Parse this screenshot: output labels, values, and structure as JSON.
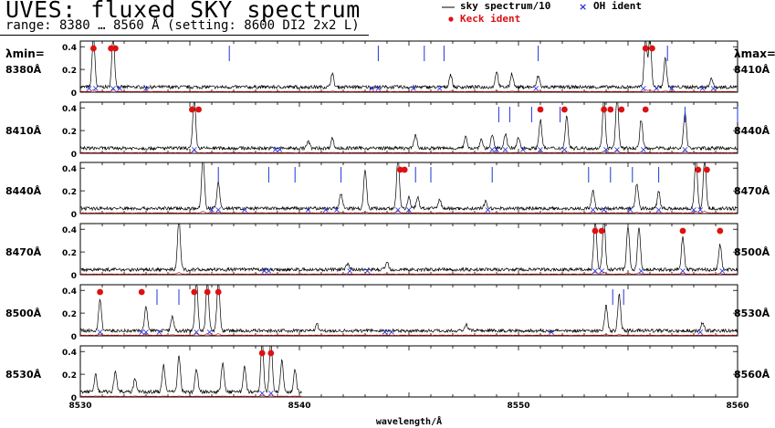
{
  "header": {
    "title": "UVES: fluxed SKY spectrum",
    "subtitle": "range: 8380 … 8560 Å (setting: 8600 DI2 2x2 L)",
    "legend": [
      {
        "label": "sky spectrum/10",
        "marker": "line",
        "color": "#000000"
      },
      {
        "label": "OH ident",
        "marker": "x",
        "color": "#2233dd"
      },
      {
        "label": "Keck ident",
        "marker": "dot",
        "color": "#dd1111"
      }
    ]
  },
  "side_labels": {
    "min": "λmin=",
    "max": "λmax="
  },
  "colors": {
    "spectrum": "#000000",
    "keck": "#dd1111",
    "oh": "#2233dd"
  },
  "chart_data": {
    "type": "line",
    "xlabel": "wavelength/Å",
    "ylim": [
      0,
      0.45
    ],
    "yticks": [
      "0",
      "0.2",
      "0.4"
    ],
    "panels": [
      {
        "min": 8380,
        "max": 8410,
        "min_label": "8380Å",
        "max_label": "8410Å",
        "peaks": [
          [
            8380.6,
            0.45,
            0.8
          ],
          [
            8381.5,
            0.45,
            0.8
          ],
          [
            8391.5,
            0.12,
            0.2
          ],
          [
            8396.9,
            0.11,
            0.2
          ],
          [
            8399.0,
            0.14,
            0.2
          ],
          [
            8399.7,
            0.12,
            0.2
          ],
          [
            8405.8,
            0.45,
            0.8
          ],
          [
            8406.0,
            0.45,
            0.8
          ],
          [
            8406.7,
            0.25,
            0.3
          ],
          [
            8400.9,
            0.1,
            0.1
          ],
          [
            8408.8,
            0.08,
            0.1
          ]
        ],
        "keck": [
          8380.6,
          8381.4,
          8381.6,
          8405.8,
          8406.1
        ],
        "oh_lines": [
          8386.8,
          8393.6,
          8395.7,
          8396.6,
          8400.9,
          8406.8
        ],
        "oh_marks": [
          8380.4,
          8380.7,
          8381.5,
          8381.8,
          8383.0,
          8393.3,
          8393.6,
          8395.2,
          8396.4,
          8400.8,
          8405.7,
          8406.3,
          8407.0,
          8408.4,
          8408.9
        ]
      },
      {
        "min": 8410,
        "max": 8440,
        "min_label": "8410Å",
        "max_label": "8440Å",
        "peaks": [
          [
            8415.2,
            0.45,
            0.8
          ],
          [
            8420.4,
            0.06,
            0.1
          ],
          [
            8421.5,
            0.09,
            0.1
          ],
          [
            8425.3,
            0.12,
            0.2
          ],
          [
            8427.6,
            0.1,
            0.1
          ],
          [
            8428.3,
            0.08,
            0.1
          ],
          [
            8428.8,
            0.11,
            0.2
          ],
          [
            8429.4,
            0.13,
            0.2
          ],
          [
            8430.0,
            0.09,
            0.1
          ],
          [
            8431.0,
            0.25,
            0.3
          ],
          [
            8432.2,
            0.28,
            0.3
          ],
          [
            8433.9,
            0.45,
            0.7
          ],
          [
            8434.5,
            0.45,
            0.7
          ],
          [
            8435.6,
            0.25,
            0.3
          ],
          [
            8437.6,
            0.32,
            0.5
          ]
        ],
        "keck": [
          8415.1,
          8415.4,
          8431.0,
          8432.1,
          8433.9,
          8434.2,
          8434.7,
          8435.8
        ],
        "oh_lines": [
          8429.1,
          8429.6,
          8430.6,
          8431.9,
          8437.6,
          8440.0
        ],
        "oh_marks": [
          8415.2,
          8418.9,
          8419.1,
          8428.8,
          8429.0,
          8429.4,
          8430.2,
          8431.0,
          8432.1,
          8434.0,
          8434.5,
          8435.7,
          8437.6
        ]
      },
      {
        "min": 8440,
        "max": 8470,
        "min_label": "8440Å",
        "max_label": "8470Å",
        "peaks": [
          [
            8445.6,
            0.45,
            0.8
          ],
          [
            8446.3,
            0.23,
            0.3
          ],
          [
            8451.9,
            0.13,
            0.2
          ],
          [
            8453.0,
            0.35,
            0.5
          ],
          [
            8454.5,
            0.45,
            0.8
          ],
          [
            8455.0,
            0.1,
            0.1
          ],
          [
            8455.4,
            0.1,
            0.1
          ],
          [
            8456.4,
            0.08,
            0.1
          ],
          [
            8458.5,
            0.06,
            0.1
          ],
          [
            8463.4,
            0.15,
            0.2
          ],
          [
            8465.4,
            0.22,
            0.3
          ],
          [
            8466.4,
            0.15,
            0.2
          ],
          [
            8468.1,
            0.45,
            0.8
          ],
          [
            8468.5,
            0.45,
            0.8
          ]
        ],
        "keck": [
          8454.6,
          8454.8,
          8468.2,
          8468.6
        ],
        "oh_lines": [
          8446.3,
          8448.6,
          8449.8,
          8451.9,
          8455.3,
          8456.0,
          8458.8,
          8463.2,
          8464.2,
          8465.2,
          8466.4
        ],
        "oh_marks": [
          8446.0,
          8446.3,
          8447.5,
          8450.4,
          8451.2,
          8451.7,
          8454.5,
          8455.0,
          8458.6,
          8463.4,
          8463.9,
          8465.1,
          8466.4,
          8468.0,
          8468.3
        ]
      },
      {
        "min": 8470,
        "max": 8500,
        "min_label": "8470Å",
        "max_label": "8500Å",
        "peaks": [
          [
            8474.5,
            0.45,
            0.7
          ],
          [
            8482.2,
            0.05,
            0.1
          ],
          [
            8484.0,
            0.07,
            0.1
          ],
          [
            8493.5,
            0.45,
            0.8
          ],
          [
            8493.9,
            0.45,
            0.8
          ],
          [
            8495.0,
            0.38,
            0.5
          ],
          [
            8495.5,
            0.38,
            0.5
          ],
          [
            8497.5,
            0.28,
            0.4
          ],
          [
            8499.2,
            0.22,
            0.3
          ]
        ],
        "keck": [
          8493.5,
          8493.8,
          8497.5,
          8499.2
        ],
        "oh_lines": [],
        "oh_marks": [
          8478.4,
          8478.6,
          8482.3,
          8483.1,
          8493.5,
          8493.8,
          8495.6,
          8497.5,
          8499.3
        ]
      },
      {
        "min": 8500,
        "max": 8530,
        "min_label": "8500Å",
        "max_label": "8530Å",
        "peaks": [
          [
            8500.9,
            0.28,
            0.4
          ],
          [
            8503.0,
            0.22,
            0.3
          ],
          [
            8504.2,
            0.13,
            0.2
          ],
          [
            8505.3,
            0.45,
            0.7
          ],
          [
            8505.8,
            0.45,
            0.7
          ],
          [
            8506.3,
            0.45,
            0.7
          ],
          [
            8510.8,
            0.06,
            0.1
          ],
          [
            8517.6,
            0.06,
            0.1
          ],
          [
            8524.0,
            0.22,
            0.3
          ],
          [
            8524.6,
            0.32,
            0.4
          ],
          [
            8528.4,
            0.07,
            0.1
          ]
        ],
        "keck": [
          8500.9,
          8502.8,
          8505.2,
          8505.8,
          8506.3
        ],
        "oh_lines": [
          8503.5,
          8504.5,
          8524.3,
          8524.8
        ],
        "oh_marks": [
          8500.9,
          8502.8,
          8503.0,
          8503.6,
          8505.3,
          8505.9,
          8513.9,
          8514.2,
          8521.5,
          8528.3
        ]
      },
      {
        "min": 8530,
        "max": 8560,
        "min_label": "8530Å",
        "max_label": "8560Å",
        "end": 8540.1,
        "peaks": [
          [
            8530.7,
            0.15,
            0.1
          ],
          [
            8531.6,
            0.18,
            0.1
          ],
          [
            8532.5,
            0.12,
            0.1
          ],
          [
            8533.8,
            0.24,
            0.1
          ],
          [
            8534.5,
            0.32,
            0.1
          ],
          [
            8535.3,
            0.2,
            0.1
          ],
          [
            8536.5,
            0.26,
            0.1
          ],
          [
            8537.5,
            0.22,
            0.1
          ],
          [
            8538.3,
            0.45,
            0.5
          ],
          [
            8538.7,
            0.45,
            0.5
          ],
          [
            8539.2,
            0.28,
            0.1
          ],
          [
            8539.8,
            0.2,
            0.1
          ]
        ],
        "keck": [
          8538.3,
          8538.7
        ],
        "oh_lines": [],
        "oh_marks": [
          8538.3,
          8538.7
        ],
        "xticks": [
          8530,
          8540,
          8550,
          8560
        ]
      }
    ]
  }
}
